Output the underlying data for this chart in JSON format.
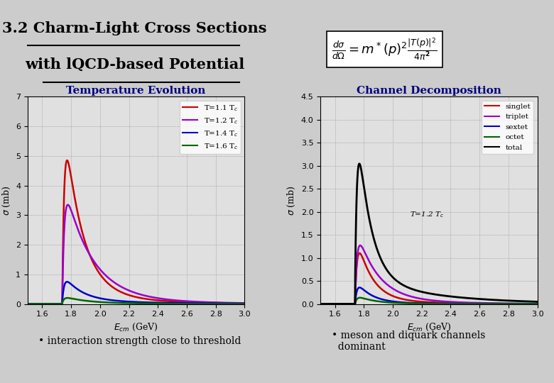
{
  "title_line1": "3.2 Charm-Light Cross Sections",
  "title_line2": "with lQCD-based Potential",
  "bg_color": "#cccccc",
  "plot_bg_color": "#e0e0e0",
  "left_title": "Temperature Evolution",
  "right_title": "Channel Decomposition",
  "left_xlabel": "$E_{cm}$ (GeV)",
  "right_xlabel": "$E_{cm}$ (GeV)",
  "ylabel": "$\\sigma$ (mb)",
  "xlim": [
    1.5,
    3.0
  ],
  "left_ylim": [
    0,
    7
  ],
  "right_ylim": [
    0,
    4.5
  ],
  "left_yticks": [
    0,
    1,
    2,
    3,
    4,
    5,
    6,
    7
  ],
  "right_yticks": [
    0,
    0.5,
    1.0,
    1.5,
    2.0,
    2.5,
    3.0,
    3.5,
    4.0,
    4.5
  ],
  "xticks": [
    1.6,
    1.8,
    2.0,
    2.2,
    2.4,
    2.6,
    2.8,
    3.0
  ],
  "threshold": 1.74,
  "left_legend": [
    "T=1.1 T$_c$",
    "T=1.2 T$_c$",
    "T=1.4 T$_c$",
    "T=1.6 T$_c$"
  ],
  "left_colors": [
    "#cc0000",
    "#9900cc",
    "#0000cc",
    "#006600"
  ],
  "right_legend": [
    "singlet",
    "triplet",
    "sextet",
    "octet",
    "total"
  ],
  "right_colors": [
    "#cc0000",
    "#9900cc",
    "#0000cc",
    "#006600",
    "#000000"
  ],
  "bottom_left": "• interaction strength close to threshold",
  "bottom_right": "• meson and diquark channels\n  dominant",
  "right_annotation": "T=1.2 T$_c$"
}
